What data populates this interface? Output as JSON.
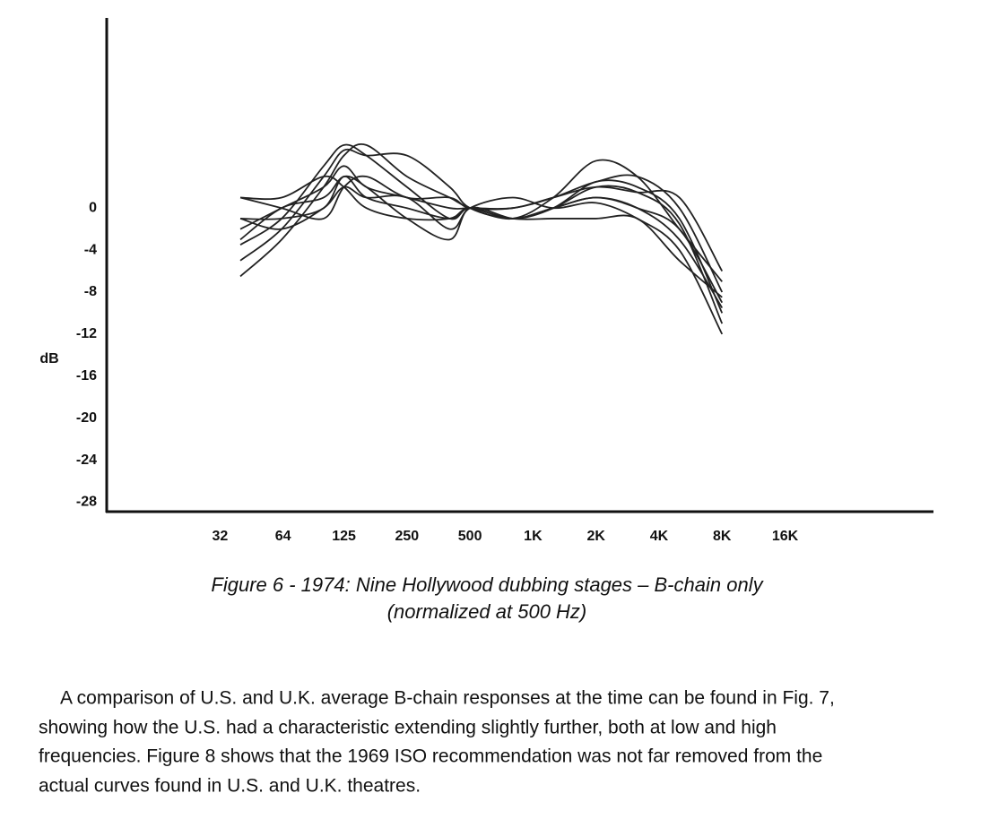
{
  "chart_data": {
    "type": "line",
    "y_label": "dB",
    "x": [
      40,
      63,
      100,
      125,
      160,
      250,
      400,
      500,
      800,
      1250,
      2000,
      3150,
      5000,
      8000
    ],
    "series": [
      {
        "color": "#222222",
        "values": [
          -6.5,
          -3,
          2,
          5,
          6,
          3,
          1,
          0,
          -1,
          1,
          4.5,
          3,
          -2,
          -7
        ]
      },
      {
        "color": "#222222",
        "values": [
          -5,
          -2,
          3,
          5.5,
          5,
          5,
          2,
          0,
          -1,
          0,
          2,
          1.5,
          -1.5,
          -11
        ]
      },
      {
        "color": "#222222",
        "values": [
          -3.5,
          -1,
          4,
          6,
          5,
          2,
          -1,
          0,
          -1,
          0,
          2.5,
          2,
          -1,
          -10
        ]
      },
      {
        "color": "#222222",
        "values": [
          -2,
          0,
          2,
          4,
          2,
          1,
          0,
          0,
          0,
          1,
          2.5,
          3,
          0,
          -8
        ]
      },
      {
        "color": "#222222",
        "values": [
          1,
          0,
          -1,
          2,
          3,
          1,
          1,
          0,
          0,
          1,
          2,
          1.5,
          1,
          -6
        ]
      },
      {
        "color": "#222222",
        "values": [
          -1,
          -1,
          0,
          3,
          1,
          0,
          -1,
          0,
          -1,
          0,
          1,
          0,
          -2,
          -9
        ]
      },
      {
        "color": "#222222",
        "values": [
          1,
          1,
          3,
          2,
          0,
          -1,
          -1,
          0,
          -1,
          0,
          1,
          0,
          -3,
          -9.5
        ]
      },
      {
        "color": "#222222",
        "values": [
          -1,
          -2,
          0,
          2,
          1,
          1,
          -2,
          0,
          1,
          0,
          0.5,
          -1,
          -4,
          -12
        ]
      },
      {
        "color": "#222222",
        "values": [
          -3,
          0,
          1,
          3,
          2,
          -1,
          -3,
          0,
          -1,
          -1,
          -1,
          -1,
          -5,
          -8.5
        ]
      }
    ],
    "log_x": true,
    "xlim": [
      9.2,
      81000
    ],
    "xticks": [
      32,
      64,
      125,
      250,
      500,
      {
        "value": 1000,
        "label": "1K"
      },
      {
        "value": 2000,
        "label": "2K"
      },
      {
        "value": 4000,
        "label": "4K"
      },
      {
        "value": 8000,
        "label": "8K"
      },
      {
        "value": 16000,
        "label": "16K"
      }
    ],
    "ylim": [
      -28.9,
      18.1
    ],
    "yticks": [
      0,
      -4,
      -8,
      -12,
      -16,
      -20,
      -24,
      -28
    ]
  },
  "caption": [
    "Figure 6  -  1974: Nine Hollywood dubbing stages – B-chain only",
    "(normalized at 500 Hz)"
  ],
  "body": {
    "lines": [
      "A comparison of U.S. and U.K. average B-chain responses at the time can be found in Fig. 7,",
      "showing how the U.S. had a characteristic extending slightly further, both at low and high",
      "frequencies. Figure 8 shows that the 1969 ISO recommendation was not far removed from the",
      "actual curves found in U.S. and U.K. theatres."
    ]
  }
}
